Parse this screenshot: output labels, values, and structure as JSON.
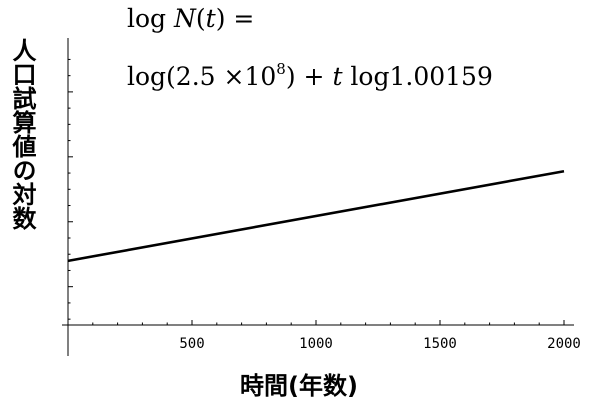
{
  "chart_data": {
    "type": "line",
    "title_lines": [
      "log N(t) =",
      "log(2.5 × 10^8) + t log1.00159"
    ],
    "formula": {
      "line1": {
        "lhs_prefix": "log",
        "var": "N",
        "arg_open": "(",
        "arg": "t",
        "arg_close": ")",
        "eq": " ="
      },
      "line2": {
        "prefix": "log(2.5 ×10",
        "exponent": "8",
        "suffix_open": ") + ",
        "var": "t",
        "suffix": " log1.00159"
      }
    },
    "xlabel": "時間(年数)",
    "ylabel": "人口試算値の対数",
    "xlim": [
      0,
      2000
    ],
    "x_ticks": [
      500,
      1000,
      1500,
      2000
    ],
    "x_minor_step": 100,
    "y_ticks_shown": false,
    "grid": false,
    "series": [
      {
        "x": [
          0,
          2000
        ],
        "y": [
          8.3979,
          9.7783
        ]
      }
    ],
    "ylim": [
      7.41,
      11.83
    ],
    "y_tick_step": 0.25,
    "line_color": "#000000"
  }
}
